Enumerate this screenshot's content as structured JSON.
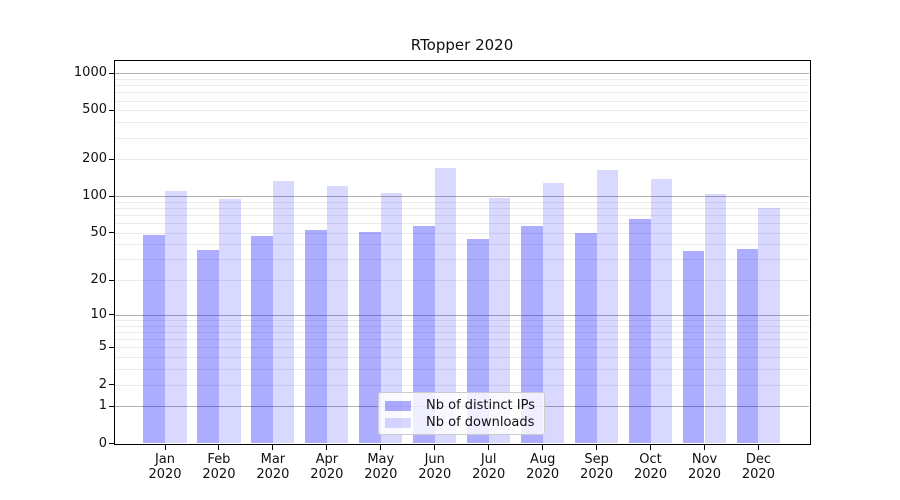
{
  "chart_data": {
    "type": "bar",
    "title": "RTopper 2020",
    "categories": [
      "Jan",
      "Feb",
      "Mar",
      "Apr",
      "May",
      "Jun",
      "Jul",
      "Aug",
      "Sep",
      "Oct",
      "Nov",
      "Dec"
    ],
    "category_year": "2020",
    "series": [
      {
        "name": "Nb of distinct IPs",
        "color": "rgba(0,0,255,0.32)",
        "values": [
          48,
          36,
          47,
          53,
          51,
          57,
          44,
          57,
          50,
          65,
          35,
          37
        ]
      },
      {
        "name": "Nb of downloads",
        "color": "rgba(0,0,255,0.15)",
        "values": [
          110,
          94,
          134,
          120,
          107,
          171,
          96,
          127,
          165,
          137,
          104,
          80
        ]
      }
    ],
    "xlabel": "",
    "ylabel": "",
    "yscale": "log1p",
    "ylim": [
      0,
      1280
    ],
    "yticks": [
      0,
      1,
      2,
      5,
      10,
      20,
      50,
      100,
      200,
      500,
      1000
    ],
    "major_gridlines": [
      1,
      10,
      100,
      1000
    ],
    "minor_gridlines": [
      2,
      3,
      4,
      5,
      6,
      7,
      8,
      9,
      20,
      30,
      40,
      50,
      60,
      70,
      80,
      90,
      200,
      300,
      400,
      500,
      600,
      700,
      800,
      900
    ],
    "grid": true,
    "legend_position": "lower center"
  },
  "colors": {
    "major_grid": "#b0b0b0",
    "minor_grid": "#ebebeb",
    "spine": "#000000",
    "bar_ips": "rgba(0,0,255,0.32)",
    "bar_downloads": "rgba(0,0,255,0.15)"
  }
}
